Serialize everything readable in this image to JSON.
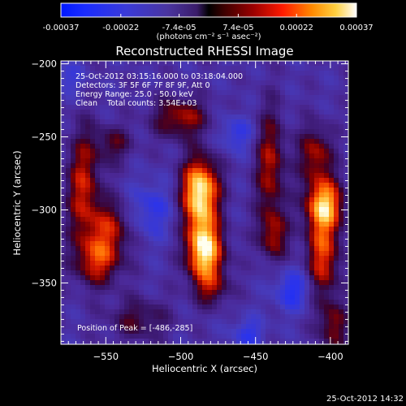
{
  "colorbar": {
    "tick_labels": [
      "-0.00037",
      "-0.00022",
      "-7.4e-05",
      "7.4e-05",
      "0.00022",
      "0.00037"
    ],
    "tick_values": [
      -0.00037,
      -0.00022,
      -7.4e-05,
      7.4e-05,
      0.00022,
      0.00037
    ],
    "range": [
      -0.00037,
      0.00037
    ],
    "units": "(photons cm⁻² s⁻¹ asec⁻²)"
  },
  "chart_data": {
    "type": "heatmap",
    "title": "Reconstructed RHESSI Image",
    "xlabel": "Heliocentric X (arcsec)",
    "ylabel": "Heliocentric Y (arcsec)",
    "xlim": [
      -580,
      -388
    ],
    "ylim": [
      -392,
      -198
    ],
    "xticks": [
      {
        "value": -550,
        "label": "−550"
      },
      {
        "value": -500,
        "label": "−500"
      },
      {
        "value": -450,
        "label": "−450"
      },
      {
        "value": -400,
        "label": "−400"
      }
    ],
    "yticks": [
      {
        "value": -200,
        "label": "−200"
      },
      {
        "value": -250,
        "label": "−250"
      },
      {
        "value": -300,
        "label": "−300"
      },
      {
        "value": -350,
        "label": "−350"
      }
    ],
    "annotations": [
      "25-Oct-2012 03:15:16.000 to 03:18:04.000",
      "Detectors: 3F 5F 6F 7F 8F 9F, Att 0",
      "Energy Range: 25.0 - 50.0 keV",
      "Clean    Total counts: 3.54E+03"
    ],
    "peak_label": "Position of Peak = [-486,-285]",
    "peak": {
      "x": -486,
      "y": -285
    },
    "sources": [
      {
        "x": -487,
        "y": -285,
        "sx": 9,
        "sy": 15,
        "a": 1.0
      },
      {
        "x": -483,
        "y": -330,
        "sx": 9,
        "sy": 15,
        "a": 0.95
      },
      {
        "x": -487,
        "y": -310,
        "sx": 7,
        "sy": 22,
        "a": 0.55
      },
      {
        "x": -478,
        "y": -355,
        "sx": 8,
        "sy": 8,
        "a": 0.35
      },
      {
        "x": -500,
        "y": -237,
        "sx": 13,
        "sy": 10,
        "a": 0.6
      },
      {
        "x": -565,
        "y": -285,
        "sx": 8,
        "sy": 28,
        "a": 0.65
      },
      {
        "x": -547,
        "y": -312,
        "sx": 10,
        "sy": 13,
        "a": 0.55
      },
      {
        "x": -555,
        "y": -335,
        "sx": 11,
        "sy": 12,
        "a": 0.65
      },
      {
        "x": -545,
        "y": -255,
        "sx": 9,
        "sy": 9,
        "a": 0.4
      },
      {
        "x": -440,
        "y": -270,
        "sx": 7,
        "sy": 28,
        "a": 0.6
      },
      {
        "x": -438,
        "y": -318,
        "sx": 7,
        "sy": 12,
        "a": 0.5
      },
      {
        "x": -404,
        "y": -296,
        "sx": 9,
        "sy": 12,
        "a": 0.95
      },
      {
        "x": -405,
        "y": -330,
        "sx": 8,
        "sy": 22,
        "a": 0.75
      },
      {
        "x": -410,
        "y": -262,
        "sx": 8,
        "sy": 14,
        "a": 0.6
      },
      {
        "x": -398,
        "y": -380,
        "sx": 7,
        "sy": 12,
        "a": 0.5
      },
      {
        "x": -528,
        "y": -375,
        "sx": 14,
        "sy": 10,
        "a": 0.4
      },
      {
        "x": -463,
        "y": -248,
        "sx": 8,
        "sy": 9,
        "a": -0.4
      },
      {
        "x": -520,
        "y": -300,
        "sx": 10,
        "sy": 14,
        "a": -0.4
      },
      {
        "x": -425,
        "y": -355,
        "sx": 9,
        "sy": 10,
        "a": -0.5
      },
      {
        "x": -455,
        "y": -385,
        "sx": 8,
        "sy": 8,
        "a": -0.4
      },
      {
        "x": -575,
        "y": -210,
        "sx": 8,
        "sy": 8,
        "a": -0.3
      }
    ]
  },
  "footer": {
    "timestamp": "25-Oct-2012 14:32"
  }
}
